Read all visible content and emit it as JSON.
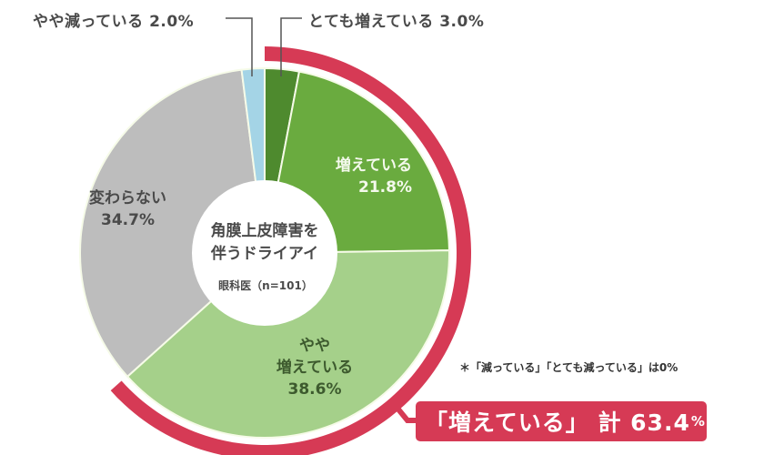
{
  "chart_data": {
    "type": "pie",
    "subtype": "donut",
    "title": "角膜上皮障害を伴うドライアイ",
    "subtitle": "眼科医（n=101）",
    "slices": [
      {
        "label": "とても増えている",
        "value": 3.0,
        "color": "#4e8a2e"
      },
      {
        "label": "増えている",
        "value": 21.8,
        "color": "#6aab3f"
      },
      {
        "label": "やや増えている",
        "value": 38.6,
        "color": "#a5d08a"
      },
      {
        "label": "変わらない",
        "value": 34.7,
        "color": "#bdbdbd"
      },
      {
        "label": "やや減っている",
        "value": 2.0,
        "color": "#a4d4e6"
      }
    ],
    "start_angle_deg": 0,
    "direction": "clockwise",
    "highlight_arc": {
      "label": "「増えている」計",
      "value": 63.4,
      "color": "#d63a55"
    },
    "note": "＊「減っている」「とても減っている」は0%"
  },
  "labels": {
    "slightly_decreasing": "やや減っている 2.0%",
    "greatly_increasing": "とても増えている 3.0%",
    "increasing_name": "増えている",
    "increasing_value": "21.8%",
    "unchanged_name": "変わらない",
    "unchanged_value": "34.7%",
    "slightly_increasing_line1": "やや",
    "slightly_increasing_line2": "増えている",
    "slightly_increasing_value": "38.6%"
  },
  "center": {
    "title_line1": "角膜上皮障害を",
    "title_line2": "伴うドライアイ",
    "sample": "眼科医（n=101）"
  },
  "note": "＊「減っている」「とても減っている」は0%",
  "callout": {
    "text": "「増えている」 計 63.4",
    "unit": "%"
  }
}
